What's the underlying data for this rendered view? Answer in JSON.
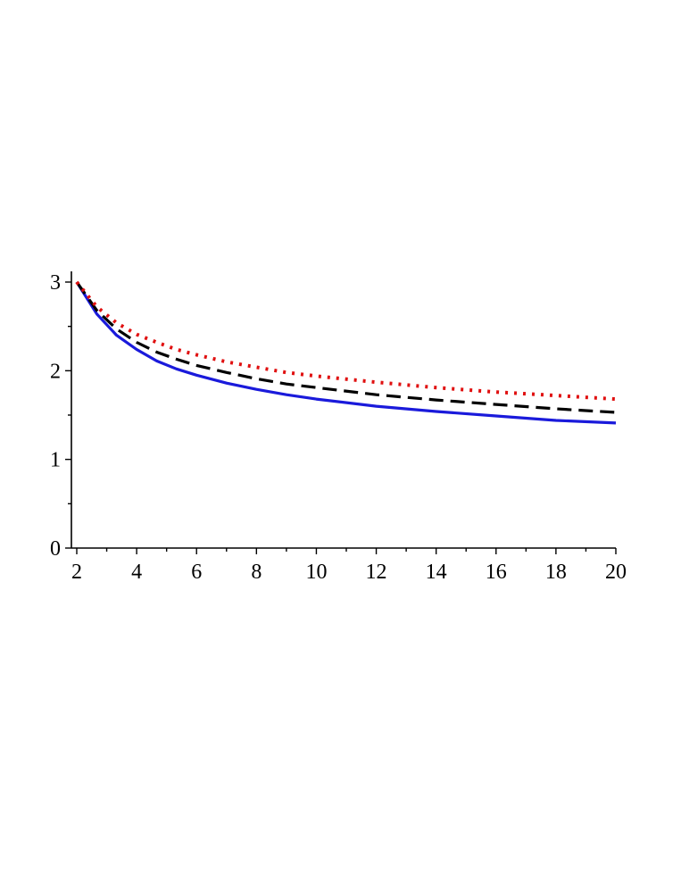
{
  "chart_data": {
    "type": "line",
    "title": "",
    "xlabel": "",
    "ylabel": "",
    "xlim": [
      2,
      20
    ],
    "ylim": [
      0,
      3
    ],
    "xticks": [
      2,
      4,
      6,
      8,
      10,
      12,
      14,
      16,
      18,
      20
    ],
    "yticks": [
      0,
      1,
      2,
      3
    ],
    "x": [
      2,
      2.67,
      3.33,
      4,
      4.67,
      5.33,
      6,
      7,
      8,
      9,
      10,
      12,
      14,
      16,
      18,
      20
    ],
    "series": [
      {
        "color": "#1a1adb",
        "style": "solid",
        "values": [
          3.0,
          2.64,
          2.4,
          2.24,
          2.11,
          2.02,
          1.95,
          1.86,
          1.79,
          1.73,
          1.68,
          1.6,
          1.54,
          1.49,
          1.44,
          1.41
        ]
      },
      {
        "color": "#000000",
        "style": "dashed",
        "values": [
          3.0,
          2.68,
          2.47,
          2.32,
          2.21,
          2.13,
          2.06,
          1.98,
          1.91,
          1.85,
          1.81,
          1.73,
          1.67,
          1.62,
          1.57,
          1.53
        ]
      },
      {
        "color": "#e01010",
        "style": "dotted",
        "values": [
          3.0,
          2.72,
          2.54,
          2.41,
          2.32,
          2.24,
          2.18,
          2.1,
          2.04,
          1.98,
          1.94,
          1.87,
          1.81,
          1.76,
          1.72,
          1.68
        ]
      }
    ],
    "grid": false,
    "legend": "none"
  }
}
